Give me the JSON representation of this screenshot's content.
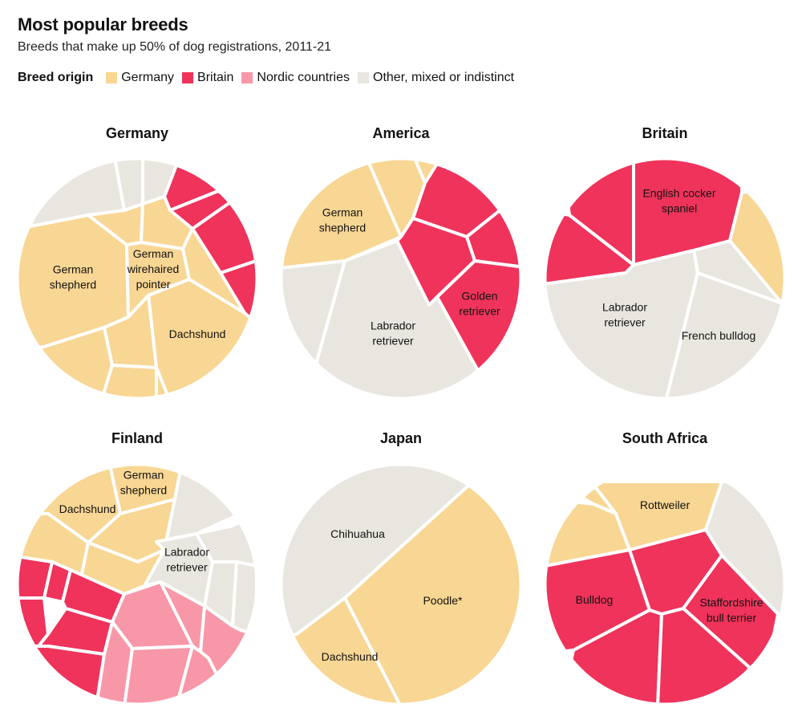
{
  "header": {
    "title": "Most popular breeds",
    "subtitle": "Breeds that make up 50% of dog registrations, 2011-21"
  },
  "legend": {
    "title": "Breed origin",
    "items": [
      {
        "key": "germany",
        "label": "Germany",
        "color": "#f8d693"
      },
      {
        "key": "britain",
        "label": "Britain",
        "color": "#ef335b"
      },
      {
        "key": "nordic",
        "label": "Nordic countries",
        "color": "#f897a8"
      },
      {
        "key": "other",
        "label": "Other, mixed or indistinct",
        "color": "#e9e6df"
      }
    ]
  },
  "chart_data": {
    "type": "voronoi-treemap",
    "title": "Most popular breeds",
    "subtitle": "Breeds that make up 50% of dog registrations, 2011-21",
    "legend_title": "Breed origin",
    "legend_placement": "top-left",
    "categories": [
      "Germany",
      "Britain",
      "Nordic countries",
      "Other, mixed or indistinct"
    ],
    "panels": [
      {
        "country": "Germany",
        "cells": [
          {
            "label": "",
            "origin": "other"
          },
          {
            "label": "",
            "origin": "other"
          },
          {
            "label": "",
            "origin": "other"
          },
          {
            "label": "",
            "origin": "britain"
          },
          {
            "label": "",
            "origin": "britain"
          },
          {
            "label": "",
            "origin": "britain"
          },
          {
            "label": "",
            "origin": "britain"
          },
          {
            "label": "German shepherd",
            "origin": "germany"
          },
          {
            "label": "",
            "origin": "germany"
          },
          {
            "label": "",
            "origin": "germany"
          },
          {
            "label": "German wirehaired pointer",
            "origin": "germany"
          },
          {
            "label": "",
            "origin": "germany"
          },
          {
            "label": "Dachshund",
            "origin": "germany"
          },
          {
            "label": "",
            "origin": "germany"
          },
          {
            "label": "",
            "origin": "germany"
          },
          {
            "label": "",
            "origin": "germany"
          },
          {
            "label": "",
            "origin": "germany"
          }
        ]
      },
      {
        "country": "America",
        "cells": [
          {
            "label": "German shepherd",
            "origin": "germany"
          },
          {
            "label": "",
            "origin": "germany"
          },
          {
            "label": "",
            "origin": "germany"
          },
          {
            "label": "",
            "origin": "britain"
          },
          {
            "label": "",
            "origin": "britain"
          },
          {
            "label": "",
            "origin": "britain"
          },
          {
            "label": "Golden retriever",
            "origin": "britain"
          },
          {
            "label": "Labrador retriever",
            "origin": "other"
          },
          {
            "label": "",
            "origin": "other"
          }
        ]
      },
      {
        "country": "Britain",
        "cells": [
          {
            "label": "",
            "origin": "britain"
          },
          {
            "label": "",
            "origin": "britain"
          },
          {
            "label": "English cocker spaniel",
            "origin": "britain"
          },
          {
            "label": "",
            "origin": "germany"
          },
          {
            "label": "",
            "origin": "other"
          },
          {
            "label": "Labrador retriever",
            "origin": "other"
          },
          {
            "label": "French bulldog",
            "origin": "other"
          }
        ]
      },
      {
        "country": "Finland",
        "cells": [
          {
            "label": "Dachshund",
            "origin": "germany"
          },
          {
            "label": "German shepherd",
            "origin": "germany"
          },
          {
            "label": "",
            "origin": "germany"
          },
          {
            "label": "",
            "origin": "germany"
          },
          {
            "label": "",
            "origin": "germany"
          },
          {
            "label": "",
            "origin": "other"
          },
          {
            "label": "",
            "origin": "other"
          },
          {
            "label": "Labrador retriever",
            "origin": "other"
          },
          {
            "label": "",
            "origin": "other"
          },
          {
            "label": "",
            "origin": "other"
          },
          {
            "label": "",
            "origin": "other"
          },
          {
            "label": "",
            "origin": "britain"
          },
          {
            "label": "",
            "origin": "britain"
          },
          {
            "label": "",
            "origin": "britain"
          },
          {
            "label": "",
            "origin": "britain"
          },
          {
            "label": "",
            "origin": "britain"
          },
          {
            "label": "",
            "origin": "britain"
          },
          {
            "label": "",
            "origin": "nordic"
          },
          {
            "label": "",
            "origin": "nordic"
          },
          {
            "label": "",
            "origin": "nordic"
          },
          {
            "label": "",
            "origin": "nordic"
          },
          {
            "label": "",
            "origin": "nordic"
          },
          {
            "label": "",
            "origin": "nordic"
          }
        ]
      },
      {
        "country": "Japan",
        "cells": [
          {
            "label": "Chihuahua",
            "origin": "other"
          },
          {
            "label": "Poodle*",
            "origin": "germany"
          },
          {
            "label": "Dachshund",
            "origin": "germany"
          }
        ]
      },
      {
        "country": "South Africa",
        "cells": [
          {
            "label": "",
            "origin": "germany"
          },
          {
            "label": "",
            "origin": "germany"
          },
          {
            "label": "Rottweiler",
            "origin": "germany"
          },
          {
            "label": "",
            "origin": "other"
          },
          {
            "label": "Bulldog",
            "origin": "britain"
          },
          {
            "label": "",
            "origin": "britain"
          },
          {
            "label": "Staffordshire bull terrier",
            "origin": "britain"
          },
          {
            "label": "",
            "origin": "britain"
          },
          {
            "label": "",
            "origin": "britain"
          }
        ]
      }
    ]
  }
}
